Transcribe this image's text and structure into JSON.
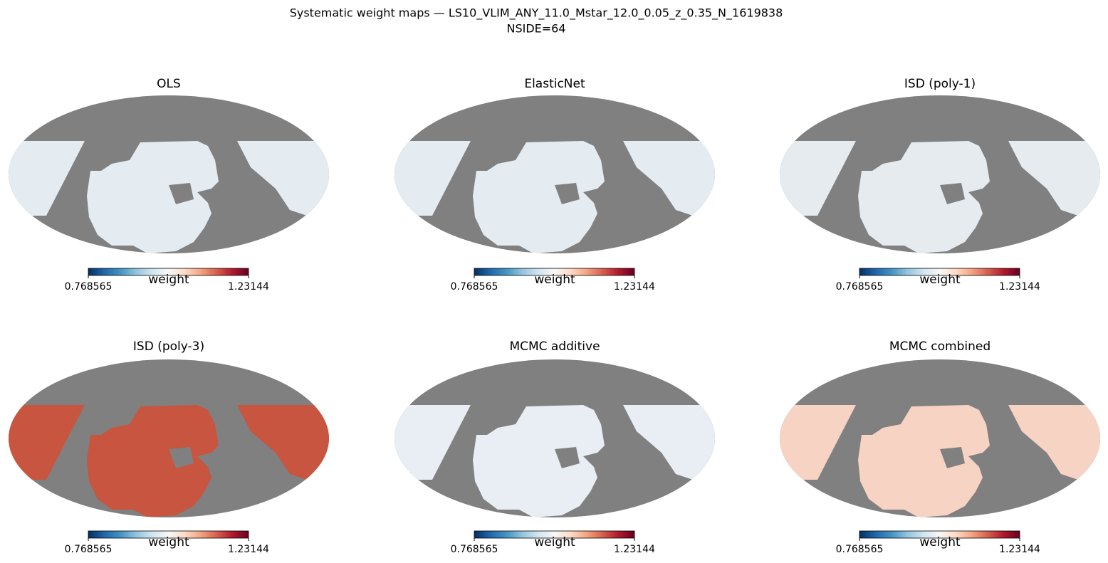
{
  "title": "Systematic weight maps — LS10_VLIM_ANY_11.0_Mstar_12.0_0.05_z_0.35_N_1619838",
  "subtitle": "NSIDE=64",
  "chart_data": [
    {
      "type": "mollweide",
      "title": "OLS",
      "colorbar_label": "weight",
      "clim": [
        0.768565,
        1.23144
      ],
      "cticks": [
        0.768565,
        1.23144
      ],
      "footprint_color": "#e4ecf2"
    },
    {
      "type": "mollweide",
      "title": "ElasticNet",
      "colorbar_label": "weight",
      "clim": [
        0.768565,
        1.23144
      ],
      "cticks": [
        0.768565,
        1.23144
      ],
      "footprint_color": "#e4ecf2"
    },
    {
      "type": "mollweide",
      "title": "ISD (poly-1)",
      "colorbar_label": "weight",
      "clim": [
        0.768565,
        1.23144
      ],
      "cticks": [
        0.768565,
        1.23144
      ],
      "footprint_color": "#e6ebf0"
    },
    {
      "type": "mollweide",
      "title": "ISD (poly-3)",
      "colorbar_label": "weight",
      "clim": [
        0.768565,
        1.23144
      ],
      "cticks": [
        0.768565,
        1.23144
      ],
      "footprint_color": "#c7553f"
    },
    {
      "type": "mollweide",
      "title": "MCMC additive",
      "colorbar_label": "weight",
      "clim": [
        0.768565,
        1.23144
      ],
      "cticks": [
        0.768565,
        1.23144
      ],
      "footprint_color": "#e8eef3"
    },
    {
      "type": "mollweide",
      "title": "MCMC combined",
      "colorbar_label": "weight",
      "clim": [
        0.768565,
        1.23144
      ],
      "cticks": [
        0.768565,
        1.23144
      ],
      "footprint_color": "#f7d3c3"
    }
  ],
  "colormap": [
    "#053061",
    "#2166ac",
    "#4393c3",
    "#92c5de",
    "#d1e5f0",
    "#f7f7f7",
    "#fddbc7",
    "#f4a582",
    "#d6604d",
    "#b2182b",
    "#67001f"
  ],
  "mask_color": "#808080"
}
